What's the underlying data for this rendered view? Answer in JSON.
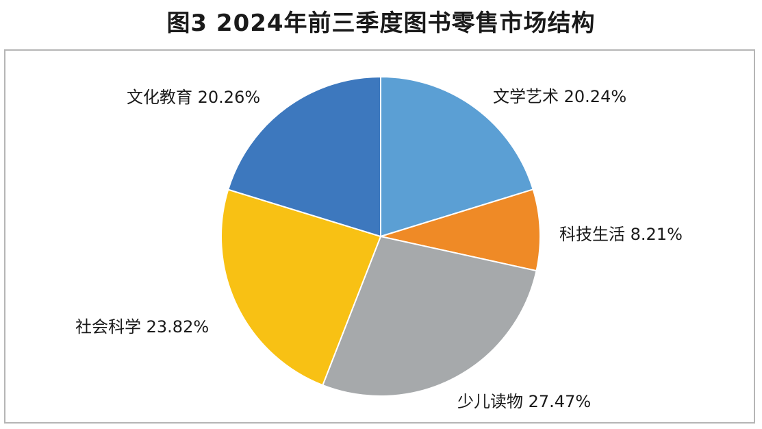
{
  "title": "图3  2024年前三季度图书零售市场结构",
  "chart_data": {
    "type": "pie",
    "title": "图3  2024年前三季度图书零售市场结构",
    "unit": "%",
    "start": "12 o'clock",
    "direction": "clockwise",
    "slices": [
      {
        "label": "文学艺术",
        "value": 20.24,
        "text": "文学艺术 20.24%",
        "color": "#5B9FD4"
      },
      {
        "label": "科技生活",
        "value": 8.21,
        "text": "科技生活 8.21%",
        "color": "#EF8A26"
      },
      {
        "label": "少儿读物",
        "value": 27.47,
        "text": "少儿读物 27.47%",
        "color": "#A6A9AB"
      },
      {
        "label": "社会科学",
        "value": 23.82,
        "text": "社会科学 23.82%",
        "color": "#F8C114"
      },
      {
        "label": "文化教育",
        "value": 20.26,
        "text": "文化教育 20.26%",
        "color": "#3D78BE"
      }
    ]
  }
}
